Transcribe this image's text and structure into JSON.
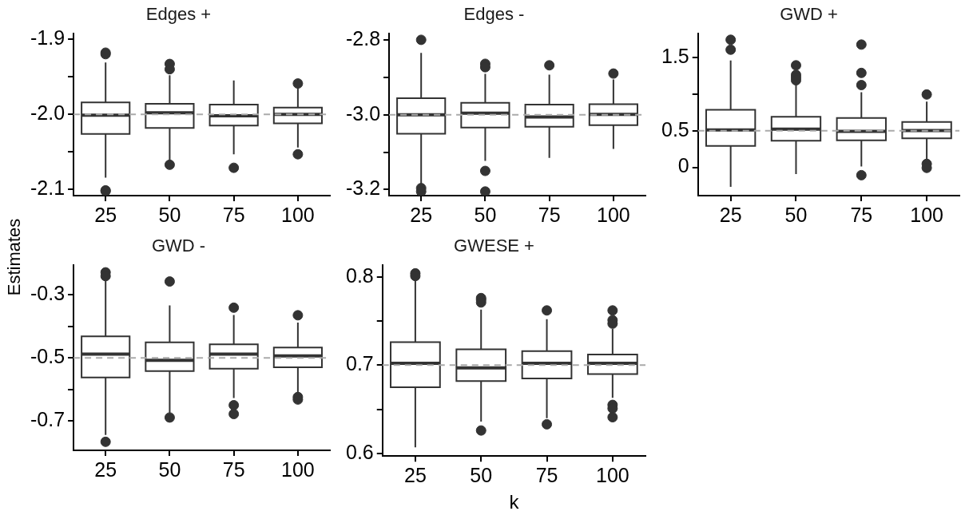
{
  "chart_data": [
    {
      "type": "box",
      "title": "Edges +",
      "ylabel": "Estimates",
      "categories": [
        "25",
        "50",
        "75",
        "100"
      ],
      "ylim": [
        -2.108,
        -1.893
      ],
      "yticks": [
        {
          "value": -2.1,
          "label": "-2.1"
        },
        {
          "value": -2.05,
          "label": null
        },
        {
          "value": -2.0,
          "label": "-2.0"
        },
        {
          "value": -1.95,
          "label": null
        },
        {
          "value": -1.9,
          "label": "-1.9"
        }
      ],
      "ref_lines": [
        {
          "axis": "y",
          "value": -2.0,
          "color": "#aaaaaa",
          "line_style": "dashed"
        }
      ],
      "boxes": [
        {
          "low": -2.084,
          "q1": -2.026,
          "median": -2.001,
          "q3": -1.984,
          "high": -1.931,
          "outliers": [
            -1.918,
            -1.92,
            -2.101,
            -2.102
          ]
        },
        {
          "low": -2.062,
          "q1": -2.018,
          "median": -1.998,
          "q3": -1.986,
          "high": -1.948,
          "outliers": [
            -1.933,
            -1.94,
            -2.067
          ]
        },
        {
          "low": -2.053,
          "q1": -2.015,
          "median": -2.002,
          "q3": -1.987,
          "high": -1.955,
          "outliers": [
            -2.071
          ]
        },
        {
          "low": -2.044,
          "q1": -2.012,
          "median": -2.0,
          "q3": -1.991,
          "high": -1.964,
          "outliers": [
            -1.959,
            -2.053
          ]
        }
      ]
    },
    {
      "type": "box",
      "title": "Edges -",
      "categories": [
        "25",
        "50",
        "75",
        "100"
      ],
      "ylim": [
        -3.216,
        -2.784
      ],
      "yticks": [
        {
          "value": -3.2,
          "label": "-3.2"
        },
        {
          "value": -3.1,
          "label": null
        },
        {
          "value": -3.0,
          "label": "-3.0"
        },
        {
          "value": -2.9,
          "label": null
        },
        {
          "value": -2.8,
          "label": "-2.8"
        }
      ],
      "ref_lines": [
        {
          "axis": "y",
          "value": -3.0,
          "color": "#aaaaaa",
          "line_style": "dashed"
        }
      ],
      "boxes": [
        {
          "low": -3.194,
          "q1": -3.051,
          "median": -3.0,
          "q3": -2.956,
          "high": -2.835,
          "outliers": [
            -2.8,
            -3.196,
            -3.205
          ]
        },
        {
          "low": -3.123,
          "q1": -3.034,
          "median": -2.996,
          "q3": -2.968,
          "high": -2.891,
          "outliers": [
            -2.864,
            -2.873,
            -3.15,
            -3.205
          ]
        },
        {
          "low": -3.115,
          "q1": -3.032,
          "median": -3.006,
          "q3": -2.973,
          "high": -2.893,
          "outliers": [
            -2.868
          ]
        },
        {
          "low": -3.091,
          "q1": -3.028,
          "median": -2.999,
          "q3": -2.972,
          "high": -2.906,
          "outliers": [
            -2.89
          ]
        }
      ]
    },
    {
      "type": "box",
      "title": "GWD +",
      "categories": [
        "25",
        "50",
        "75",
        "100"
      ],
      "ylim": [
        -0.387,
        1.828
      ],
      "yticks": [
        {
          "value": 0,
          "label": "0"
        },
        {
          "value": 0.5,
          "label": "0.5"
        },
        {
          "value": 1.0,
          "label": null
        },
        {
          "value": 1.5,
          "label": "1.5"
        }
      ],
      "ref_lines": [
        {
          "axis": "y",
          "value": 0.5,
          "color": "#aaaaaa",
          "line_style": "dashed"
        }
      ],
      "boxes": [
        {
          "low": -0.266,
          "q1": 0.293,
          "median": 0.511,
          "q3": 0.788,
          "high": 1.463,
          "outliers": [
            1.747,
            1.611
          ]
        },
        {
          "low": -0.092,
          "q1": 0.365,
          "median": 0.522,
          "q3": 0.692,
          "high": 1.155,
          "outliers": [
            1.397,
            1.266,
            1.229,
            1.192
          ]
        },
        {
          "low": 0.011,
          "q1": 0.369,
          "median": 0.493,
          "q3": 0.677,
          "high": 1.028,
          "outliers": [
            1.127,
            1.293,
            1.681,
            -0.107
          ]
        },
        {
          "low": 0.085,
          "q1": 0.397,
          "median": 0.504,
          "q3": 0.622,
          "high": 0.899,
          "outliers": [
            0.998,
            0.048,
            -0.007
          ]
        }
      ]
    },
    {
      "type": "box",
      "title": "GWD -",
      "categories": [
        "25",
        "50",
        "75",
        "100"
      ],
      "ylim": [
        -0.793,
        -0.207
      ],
      "yticks": [
        {
          "value": -0.7,
          "label": "-0.7"
        },
        {
          "value": -0.6,
          "label": null
        },
        {
          "value": -0.5,
          "label": "-0.5"
        },
        {
          "value": -0.4,
          "label": null
        },
        {
          "value": -0.3,
          "label": "-0.3"
        }
      ],
      "ref_lines": [
        {
          "axis": "y",
          "value": -0.5,
          "color": "#aaaaaa",
          "line_style": "dashed"
        }
      ],
      "boxes": [
        {
          "low": -0.744,
          "q1": -0.562,
          "median": -0.488,
          "q3": -0.432,
          "high": -0.246,
          "outliers": [
            -0.229,
            -0.241,
            -0.766
          ]
        },
        {
          "low": -0.676,
          "q1": -0.542,
          "median": -0.508,
          "q3": -0.451,
          "high": -0.334,
          "outliers": [
            -0.258,
            -0.689
          ]
        },
        {
          "low": -0.627,
          "q1": -0.534,
          "median": -0.488,
          "q3": -0.457,
          "high": -0.364,
          "outliers": [
            -0.341,
            -0.65,
            -0.678
          ]
        },
        {
          "low": -0.612,
          "q1": -0.53,
          "median": -0.494,
          "q3": -0.467,
          "high": -0.388,
          "outliers": [
            -0.365,
            -0.624,
            -0.632
          ]
        }
      ]
    },
    {
      "type": "box",
      "title": "GWESE +",
      "xlabel": "k",
      "categories": [
        "25",
        "50",
        "75",
        "100"
      ],
      "ylim": [
        0.597,
        0.813
      ],
      "yticks": [
        {
          "value": 0.6,
          "label": "0.6"
        },
        {
          "value": 0.65,
          "label": null
        },
        {
          "value": 0.7,
          "label": "0.7"
        },
        {
          "value": 0.75,
          "label": null
        },
        {
          "value": 0.8,
          "label": "0.8"
        }
      ],
      "ref_lines": [
        {
          "axis": "y",
          "value": 0.7,
          "color": "#aaaaaa",
          "line_style": "dashed"
        }
      ],
      "boxes": [
        {
          "low": 0.607,
          "q1": 0.675,
          "median": 0.702,
          "q3": 0.726,
          "high": 0.799,
          "outliers": [
            0.804,
            0.801
          ]
        },
        {
          "low": 0.636,
          "q1": 0.682,
          "median": 0.697,
          "q3": 0.718,
          "high": 0.763,
          "outliers": [
            0.776,
            0.774,
            0.771,
            0.626
          ]
        },
        {
          "low": 0.64,
          "q1": 0.685,
          "median": 0.702,
          "q3": 0.716,
          "high": 0.752,
          "outliers": [
            0.762,
            0.633
          ]
        },
        {
          "low": 0.663,
          "q1": 0.69,
          "median": 0.702,
          "q3": 0.712,
          "high": 0.741,
          "outliers": [
            0.762,
            0.751,
            0.747,
            0.655,
            0.651,
            0.641
          ]
        }
      ]
    }
  ]
}
